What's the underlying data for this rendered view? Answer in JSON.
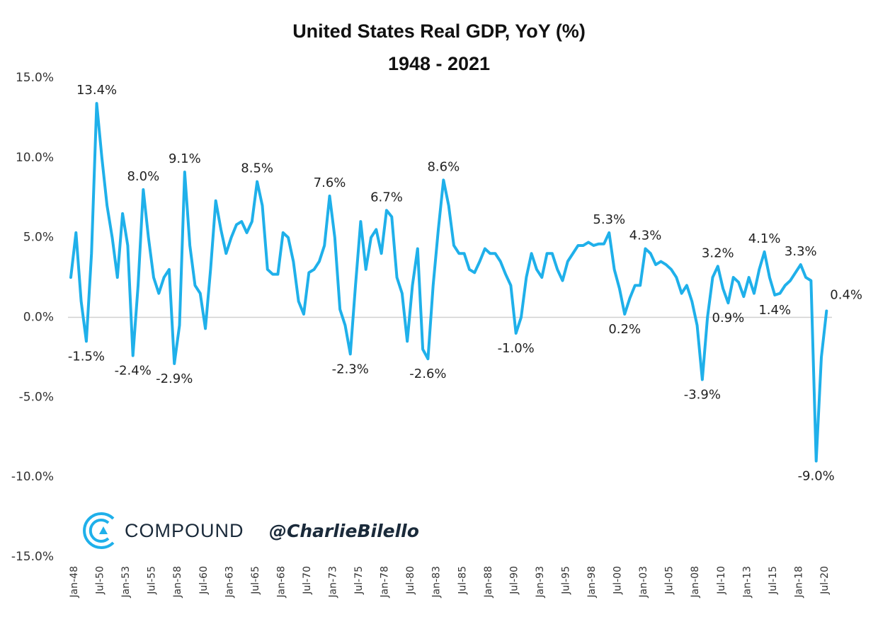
{
  "chart_data": {
    "type": "line",
    "title": "United States Real GDP, YoY (%)",
    "subtitle": "1948 - 2021",
    "categories": [
      "Jan-48",
      null,
      null,
      null,
      null,
      "Jul-50",
      null,
      null,
      null,
      null,
      "Jan-53",
      null,
      null,
      null,
      null,
      "Jul-55",
      null,
      null,
      null,
      null,
      "Jan-58",
      null,
      null,
      null,
      null,
      "Jul-60",
      null,
      null,
      null,
      null,
      "Jan-63",
      null,
      null,
      null,
      null,
      "Jul-65",
      null,
      null,
      null,
      null,
      "Jan-68",
      null,
      null,
      null,
      null,
      "Jul-70",
      null,
      null,
      null,
      null,
      "Jan-73",
      null,
      null,
      null,
      null,
      "Jul-75",
      null,
      null,
      null,
      null,
      "Jan-78",
      null,
      null,
      null,
      null,
      "Jul-80",
      null,
      null,
      null,
      null,
      "Jan-83",
      null,
      null,
      null,
      null,
      "Jul-85",
      null,
      null,
      null,
      null,
      "Jan-88",
      null,
      null,
      null,
      null,
      "Jul-90",
      null,
      null,
      null,
      null,
      "Jan-93",
      null,
      null,
      null,
      null,
      "Jul-95",
      null,
      null,
      null,
      null,
      "Jan-98",
      null,
      null,
      null,
      null,
      "Jul-00",
      null,
      null,
      null,
      null,
      "Jan-03",
      null,
      null,
      null,
      null,
      "Jul-05",
      null,
      null,
      null,
      null,
      "Jan-08",
      null,
      null,
      null,
      null,
      "Jul-10",
      null,
      null,
      null,
      null,
      "Jan-13",
      null,
      null,
      null,
      null,
      "Jul-15",
      null,
      null,
      null,
      null,
      "Jan-18",
      null,
      null,
      null,
      null,
      "Jul-20",
      null
    ],
    "series": [
      {
        "name": "Real GDP YoY",
        "color": "#1fb0ea",
        "values": [
          2.5,
          5.3,
          1.0,
          -1.5,
          4.0,
          13.4,
          10.0,
          7.0,
          5.0,
          2.5,
          6.5,
          4.5,
          -2.4,
          2.0,
          8.0,
          5.0,
          2.5,
          1.5,
          2.5,
          3.0,
          -2.9,
          -0.5,
          9.1,
          4.5,
          2.0,
          1.5,
          -0.7,
          3.0,
          7.3,
          5.5,
          4.0,
          5.0,
          5.8,
          6.0,
          5.3,
          6.0,
          8.5,
          7.0,
          3.0,
          2.7,
          2.7,
          5.3,
          5.0,
          3.5,
          1.0,
          0.2,
          2.8,
          3.0,
          3.5,
          4.5,
          7.6,
          5.0,
          0.5,
          -0.5,
          -2.3,
          2.0,
          6.0,
          3.0,
          5.0,
          5.5,
          4.0,
          6.7,
          6.3,
          2.5,
          1.5,
          -1.5,
          2.0,
          4.3,
          -2.0,
          -2.6,
          2.0,
          5.5,
          8.6,
          7.0,
          4.5,
          4.0,
          4.0,
          3.0,
          2.8,
          3.5,
          4.3,
          4.0,
          4.0,
          3.5,
          2.7,
          2.0,
          -1.0,
          0.0,
          2.5,
          4.0,
          3.0,
          2.5,
          4.0,
          4.0,
          3.0,
          2.3,
          3.5,
          4.0,
          4.5,
          4.5,
          4.7,
          4.5,
          4.6,
          4.6,
          5.3,
          3.0,
          1.8,
          0.2,
          1.2,
          2.0,
          2.0,
          4.3,
          4.0,
          3.3,
          3.5,
          3.3,
          3.0,
          2.5,
          1.5,
          2.0,
          1.0,
          -0.5,
          -3.9,
          0.0,
          2.5,
          3.2,
          1.8,
          0.9,
          2.5,
          2.2,
          1.3,
          2.5,
          1.5,
          3.0,
          4.1,
          2.5,
          1.4,
          1.5,
          2.0,
          2.3,
          2.8,
          3.3,
          2.5,
          2.3,
          -9.0,
          -2.5,
          0.4
        ],
        "value_labels": [
          null,
          null,
          null,
          "-1.5%",
          null,
          "13.4%",
          null,
          null,
          null,
          null,
          null,
          null,
          "-2.4%",
          null,
          "8.0%",
          null,
          null,
          null,
          null,
          null,
          "-2.9%",
          null,
          "9.1%",
          null,
          null,
          null,
          null,
          null,
          null,
          null,
          null,
          null,
          null,
          null,
          null,
          null,
          "8.5%",
          null,
          null,
          null,
          null,
          null,
          null,
          null,
          null,
          null,
          null,
          null,
          null,
          null,
          "7.6%",
          null,
          null,
          null,
          "-2.3%",
          null,
          null,
          null,
          null,
          null,
          null,
          "6.7%",
          null,
          null,
          null,
          null,
          null,
          null,
          null,
          "-2.6%",
          null,
          null,
          "8.6%",
          null,
          null,
          null,
          null,
          null,
          null,
          null,
          null,
          null,
          null,
          null,
          null,
          null,
          "-1.0%",
          null,
          null,
          null,
          null,
          null,
          null,
          null,
          null,
          null,
          null,
          null,
          null,
          null,
          null,
          null,
          null,
          null,
          "5.3%",
          null,
          null,
          "0.2%",
          null,
          null,
          null,
          "4.3%",
          null,
          null,
          null,
          null,
          null,
          null,
          null,
          null,
          null,
          null,
          "-3.9%",
          null,
          null,
          "3.2%",
          null,
          "0.9%",
          null,
          null,
          null,
          null,
          null,
          null,
          "4.1%",
          null,
          "1.4%",
          null,
          null,
          null,
          null,
          "3.3%",
          null,
          null,
          "-9.0%",
          null,
          "0.4%"
        ]
      }
    ],
    "ylim": [
      -15,
      15
    ],
    "yticks": [
      {
        "value": -15,
        "label": "-15.0%"
      },
      {
        "value": -10,
        "label": "-10.0%"
      },
      {
        "value": -5,
        "label": "-5.0%"
      },
      {
        "value": 0,
        "label": "0.0%"
      },
      {
        "value": 5,
        "label": "5.0%"
      },
      {
        "value": 10,
        "label": "10.0%"
      },
      {
        "value": 15,
        "label": "15.0%"
      }
    ],
    "grid": false
  },
  "watermark": {
    "brand": "COMPOUND",
    "handle": "@CharlieBilello"
  }
}
